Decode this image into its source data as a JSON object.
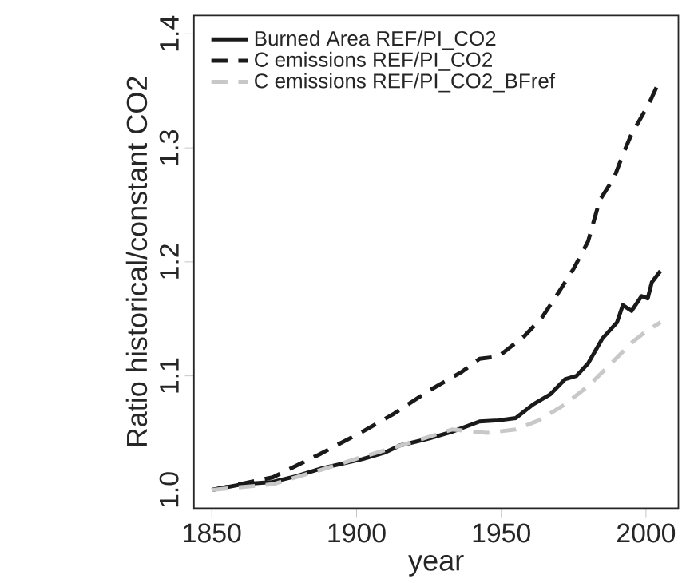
{
  "chart_data": {
    "type": "line",
    "xlabel": "year",
    "ylabel": "Ratio historical/constant CO2",
    "xlim": [
      1843.8,
      2011.2
    ],
    "ylim": [
      0.984,
      1.416
    ],
    "xticks": [
      1850,
      1900,
      1950,
      2000
    ],
    "yticks": [
      {
        "value": 1.0,
        "label": "1.0"
      },
      1.1,
      1.2,
      1.3,
      1.4
    ],
    "grid": false,
    "legend": "top left",
    "series": [
      {
        "name": "Burned Area REF/PI_CO2",
        "color": "#1a1a1a",
        "line_style": "solid",
        "x": [
          1850,
          1860.5,
          1871,
          1879,
          1888,
          1902,
          1910,
          1915,
          1925,
          1933,
          1942.5,
          1949,
          1955,
          1961,
          1967,
          1972,
          1976,
          1980,
          1985,
          1990,
          1992,
          1995,
          1998.5,
          2000.6,
          2002,
          2005
        ],
        "values": [
          1.0,
          1.005,
          1.007,
          1.012,
          1.019,
          1.027,
          1.033,
          1.039,
          1.045,
          1.051,
          1.06,
          1.061,
          1.063,
          1.075,
          1.084,
          1.097,
          1.1,
          1.111,
          1.133,
          1.147,
          1.162,
          1.157,
          1.17,
          1.168,
          1.182,
          1.192
        ]
      },
      {
        "name": "C emissions REF/PI_CO2",
        "color": "#1a1a1a",
        "line_style": "dashed",
        "x": [
          1850,
          1871,
          1887,
          1902,
          1913,
          1925,
          1936,
          1942.5,
          1949,
          1952,
          1958,
          1964,
          1969,
          1975,
          1980,
          1984,
          1989,
          1992,
          1995,
          2000,
          2002,
          2004.5
        ],
        "values": [
          1.0,
          1.011,
          1.031,
          1.051,
          1.067,
          1.087,
          1.103,
          1.115,
          1.117,
          1.123,
          1.135,
          1.151,
          1.17,
          1.194,
          1.218,
          1.254,
          1.274,
          1.294,
          1.312,
          1.334,
          1.344,
          1.358
        ]
      },
      {
        "name": "C emissions REF/PI_CO2_BFref",
        "color": "#c8c8c8",
        "line_style": "dashed",
        "x": [
          1850,
          1871,
          1887,
          1902,
          1918,
          1933,
          1945,
          1955,
          1963,
          1972,
          1980,
          1988,
          1995,
          2000,
          2005
        ],
        "values": [
          1.0,
          1.005,
          1.017,
          1.029,
          1.041,
          1.053,
          1.05,
          1.053,
          1.061,
          1.075,
          1.091,
          1.111,
          1.129,
          1.139,
          1.147
        ]
      }
    ]
  }
}
